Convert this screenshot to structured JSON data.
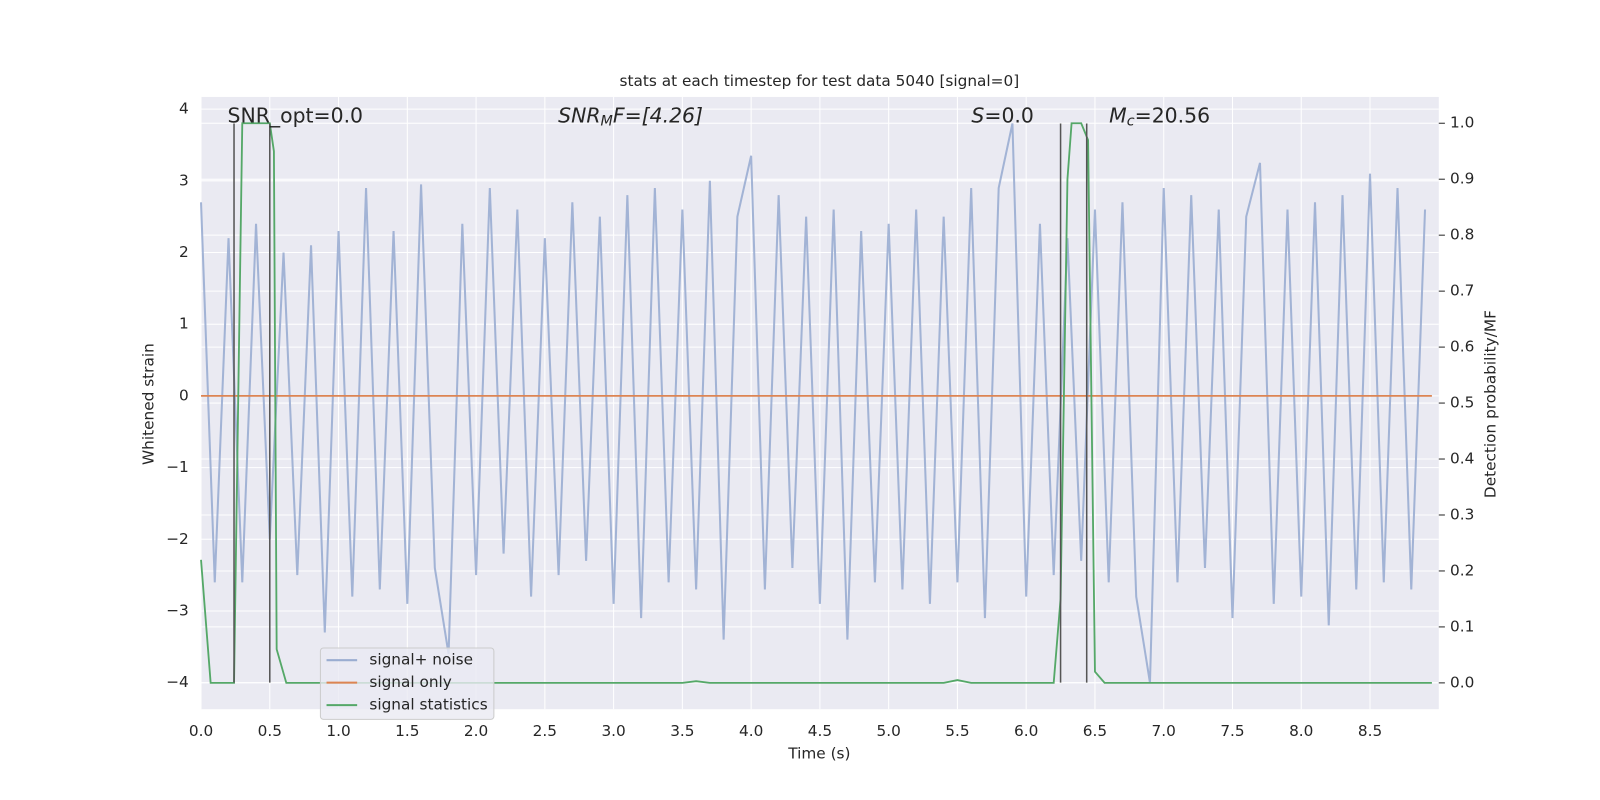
{
  "chart_data": {
    "type": "line",
    "title": "stats at each timestep for test data 5040 [signal=0]",
    "xlabel": "Time (s)",
    "ylabel": "Whitened strain",
    "y2label": "Detection probability/MF",
    "xlim": [
      0,
      9.0
    ],
    "ylim": [
      -4.37,
      4.17
    ],
    "y2lim": [
      -0.047,
      1.047
    ],
    "grid": true,
    "legend": "lower left",
    "xticks": [
      {
        "value": 0,
        "label": "0.0"
      },
      {
        "value": 0.5,
        "label": "0.5"
      },
      {
        "value": 1,
        "label": "1.0"
      },
      {
        "value": 1.5,
        "label": "1.5"
      },
      {
        "value": 2,
        "label": "2.0"
      },
      {
        "value": 2.5,
        "label": "2.5"
      },
      {
        "value": 3,
        "label": "3.0"
      },
      {
        "value": 3.5,
        "label": "3.5"
      },
      {
        "value": 4,
        "label": "4.0"
      },
      {
        "value": 4.5,
        "label": "4.5"
      },
      {
        "value": 5,
        "label": "5.0"
      },
      {
        "value": 5.5,
        "label": "5.5"
      },
      {
        "value": 6,
        "label": "6.0"
      },
      {
        "value": 6.5,
        "label": "6.5"
      },
      {
        "value": 7,
        "label": "7.0"
      },
      {
        "value": 7.5,
        "label": "7.5"
      },
      {
        "value": 8,
        "label": "8.0"
      },
      {
        "value": 8.5,
        "label": "8.5"
      }
    ],
    "yticks": [
      {
        "value": -4,
        "label": "−4"
      },
      {
        "value": -3,
        "label": "−3"
      },
      {
        "value": -2,
        "label": "−2"
      },
      {
        "value": -1,
        "label": "−1"
      },
      0,
      1,
      2,
      3,
      4
    ],
    "y2ticks": [
      {
        "value": 0,
        "label": "0.0"
      },
      {
        "value": 0.1,
        "label": "0.1"
      },
      {
        "value": 0.2,
        "label": "0.2"
      },
      {
        "value": 0.3,
        "label": "0.3"
      },
      {
        "value": 0.4,
        "label": "0.4"
      },
      {
        "value": 0.5,
        "label": "0.5"
      },
      {
        "value": 0.6,
        "label": "0.6"
      },
      {
        "value": 0.7,
        "label": "0.7"
      },
      {
        "value": 0.8,
        "label": "0.8"
      },
      {
        "value": 0.9,
        "label": "0.9"
      },
      {
        "value": 1.0,
        "label": "1.0"
      }
    ],
    "series": [
      {
        "name": "signal+ noise",
        "color": "#9aadd1",
        "x": [
          0,
          0.1,
          0.2,
          0.3,
          0.4,
          0.5,
          0.6,
          0.7,
          0.8,
          0.9,
          1.0,
          1.1,
          1.2,
          1.3,
          1.4,
          1.5,
          1.6,
          1.7,
          1.8,
          1.9,
          2.0,
          2.1,
          2.2,
          2.3,
          2.4,
          2.5,
          2.6,
          2.7,
          2.8,
          2.9,
          3.0,
          3.1,
          3.2,
          3.3,
          3.4,
          3.5,
          3.6,
          3.7,
          3.8,
          3.9,
          4.0,
          4.1,
          4.2,
          4.3,
          4.4,
          4.5,
          4.6,
          4.7,
          4.8,
          4.9,
          5.0,
          5.1,
          5.2,
          5.3,
          5.4,
          5.5,
          5.6,
          5.7,
          5.8,
          5.9,
          6.0,
          6.1,
          6.2,
          6.3,
          6.4,
          6.5,
          6.6,
          6.7,
          6.8,
          6.9,
          7.0,
          7.1,
          7.2,
          7.3,
          7.4,
          7.5,
          7.6,
          7.7,
          7.8,
          7.9,
          8.0,
          8.1,
          8.2,
          8.3,
          8.4,
          8.5,
          8.6,
          8.7,
          8.8,
          8.9
        ],
        "values": [
          2.7,
          -2.6,
          2.2,
          -2.6,
          2.4,
          -2.0,
          2.0,
          -2.5,
          2.1,
          -3.3,
          2.3,
          -2.8,
          2.9,
          -2.7,
          2.3,
          -2.9,
          2.95,
          -2.4,
          -3.6,
          2.4,
          -2.5,
          2.9,
          -2.2,
          2.6,
          -2.8,
          2.2,
          -2.5,
          2.7,
          -2.3,
          2.5,
          -2.9,
          2.8,
          -3.1,
          2.9,
          -2.6,
          2.6,
          -2.7,
          3.0,
          -3.4,
          2.5,
          3.35,
          -2.7,
          2.8,
          -2.4,
          2.5,
          -2.9,
          2.6,
          -3.4,
          2.3,
          -2.6,
          2.4,
          -2.7,
          2.6,
          -2.9,
          2.5,
          -2.6,
          2.9,
          -3.1,
          2.9,
          3.8,
          -2.8,
          2.4,
          -2.5,
          2.2,
          -2.3,
          2.6,
          -2.6,
          2.7,
          -2.8,
          -4.0,
          2.9,
          -2.6,
          2.8,
          -2.4,
          2.6,
          -3.1,
          2.5,
          3.25,
          -2.9,
          2.6,
          -2.8,
          2.7,
          -3.2,
          2.8,
          -2.7,
          3.1,
          -2.6,
          2.9,
          -2.7,
          2.6
        ]
      },
      {
        "name": "signal only",
        "color": "#dd8452",
        "x": [
          0,
          8.95
        ],
        "values": [
          0,
          0
        ]
      },
      {
        "name": "signal statistics",
        "color": "#55a868",
        "axis": "y2",
        "x": [
          0,
          0.07,
          0.24,
          0.3,
          0.5,
          0.53,
          0.55,
          0.62,
          3.5,
          3.6,
          3.7,
          5.4,
          5.5,
          5.6,
          6.2,
          6.25,
          6.3,
          6.33,
          6.4,
          6.45,
          6.5,
          6.57,
          8.95
        ],
        "values": [
          0.22,
          0,
          0,
          1.0,
          1.0,
          0.95,
          0.06,
          0,
          0,
          0.003,
          0,
          0,
          0.005,
          0,
          0,
          0.15,
          0.9,
          1.0,
          1.0,
          0.97,
          0.02,
          0,
          0
        ]
      }
    ],
    "vlines": {
      "x": [
        0.24,
        0.5,
        6.25,
        6.44
      ],
      "ymin": -4,
      "ymax": 3.8,
      "color": "#555555"
    },
    "annotations": [
      {
        "text": "SNR_opt=0.0"
      },
      {
        "base": "SNR",
        "sub": "M",
        "rest": "F=[4.26]"
      },
      {
        "base": "S",
        "rest": "=0.0"
      },
      {
        "base": "M",
        "sub": "c",
        "rest": "=20.56"
      }
    ]
  }
}
